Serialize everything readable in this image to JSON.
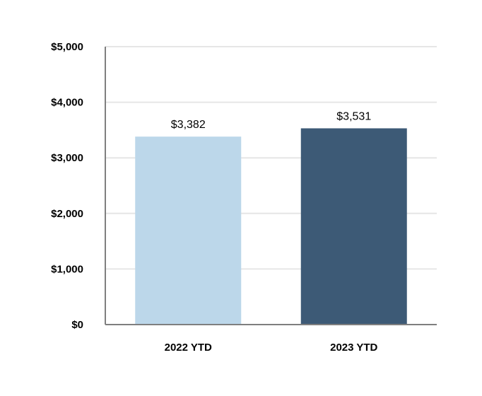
{
  "chart_data": {
    "type": "bar",
    "title": "",
    "xlabel": "",
    "ylabel": "",
    "categories": [
      "2022 YTD",
      "2023 YTD"
    ],
    "values": [
      3382,
      3531
    ],
    "data_labels": [
      "$3,382",
      "$3,531"
    ],
    "ylim": [
      0,
      5000
    ],
    "yticks": [
      0,
      1000,
      2000,
      3000,
      4000,
      5000
    ],
    "ytick_labels": [
      "$0",
      "$1,000",
      "$2,000",
      "$3,000",
      "$4,000",
      "$5,000"
    ],
    "grid": true,
    "legend": "none",
    "colors": {
      "bars": [
        "#bcd7ea",
        "#3d5a76"
      ],
      "grid": "#e6e6e6",
      "axis": "#7f7f7f"
    }
  }
}
